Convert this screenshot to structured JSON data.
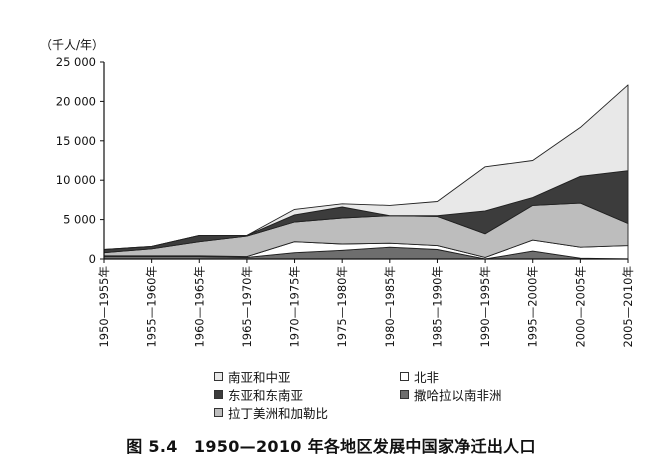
{
  "caption": "图 5.4　1950—2010 年各地区发展中国家净迁出人口",
  "chart_data": {
    "type": "area",
    "stacked": true,
    "ylabel": "（千人/年）",
    "ylim": [
      0,
      25000
    ],
    "yticks": [
      0,
      5000,
      10000,
      15000,
      20000,
      25000
    ],
    "ytick_labels": [
      "0",
      "5 000",
      "10 000",
      "15 000",
      "20 000",
      "25 000"
    ],
    "categories": [
      "1950—1955年",
      "1955—1960年",
      "1960—1965年",
      "1965—1970年",
      "1970—1975年",
      "1975—1980年",
      "1980—1985年",
      "1985—1990年",
      "1990—1995年",
      "1995—2000年",
      "2000—2005年",
      "2005—2010年"
    ],
    "legend_position": "bottom",
    "series": [
      {
        "name": "撒哈拉以南非洲",
        "color": "#6e6e6e",
        "values": [
          300,
          300,
          300,
          200,
          800,
          1100,
          1500,
          1200,
          0,
          1000,
          100,
          0
        ]
      },
      {
        "name": "北非",
        "color": "#ffffff",
        "values": [
          100,
          100,
          100,
          100,
          1400,
          800,
          500,
          500,
          200,
          1400,
          1400,
          1700
        ]
      },
      {
        "name": "拉丁美洲和加勒比",
        "color": "#bdbdbd",
        "values": [
          400,
          900,
          1800,
          2600,
          2500,
          3300,
          3500,
          3700,
          3000,
          4400,
          5600,
          2800
        ]
      },
      {
        "name": "东亚和东南亚",
        "color": "#3c3c3c",
        "values": [
          400,
          300,
          800,
          100,
          900,
          1400,
          0,
          100,
          2900,
          1000,
          3400,
          6700
        ]
      },
      {
        "name": "南亚和中亚",
        "color": "#e8e8e8",
        "values": [
          0,
          0,
          0,
          0,
          700,
          400,
          1300,
          1800,
          5600,
          4700,
          6200,
          10900
        ]
      }
    ]
  },
  "legend": {
    "items": [
      {
        "label": "南亚和中亚",
        "color": "#e8e8e8"
      },
      {
        "label": "北非",
        "color": "#ffffff"
      },
      {
        "label": "东亚和东南亚",
        "color": "#3c3c3c"
      },
      {
        "label": "撒哈拉以南非洲",
        "color": "#6e6e6e"
      },
      {
        "label": "拉丁美洲和加勒比",
        "color": "#bdbdbd"
      }
    ]
  }
}
